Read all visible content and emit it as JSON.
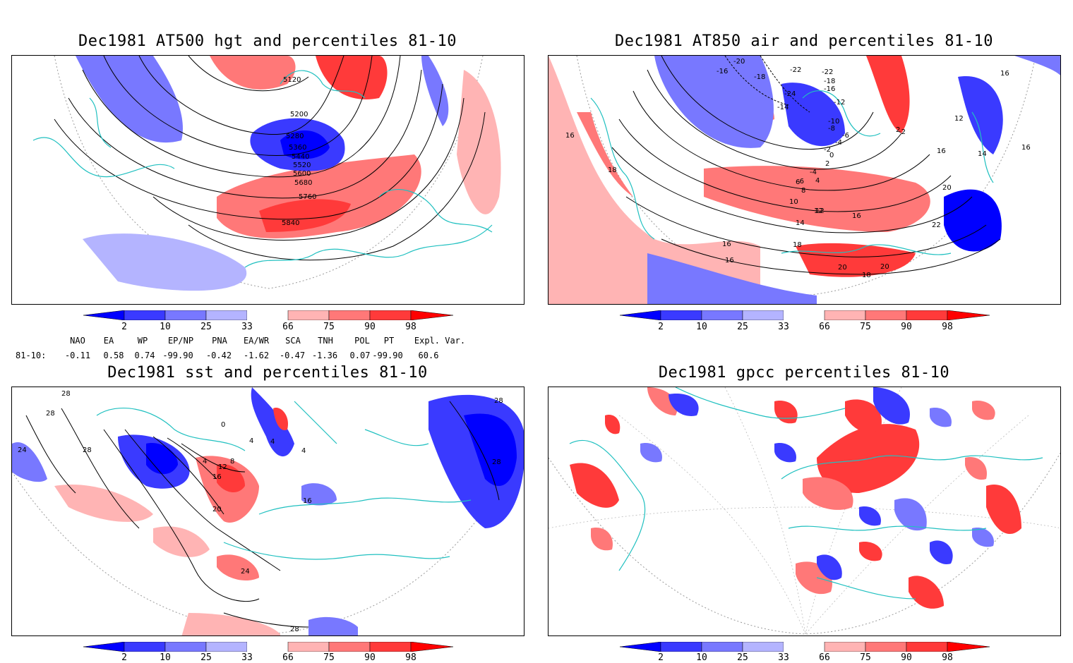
{
  "panels": [
    {
      "id": "hgt",
      "title": "Dec1981 AT500 hgt and percentiles 81-10",
      "contour_labels": [
        "5120",
        "5200",
        "5280",
        "5360",
        "5440",
        "5520",
        "5600",
        "5680",
        "5760",
        "5840"
      ]
    },
    {
      "id": "air",
      "title": "Dec1981 AT850 air and percentiles 81-10",
      "contour_labels": [
        "-20",
        "-16",
        "-18",
        "-22",
        "-22",
        "-18",
        "-16",
        "-24",
        "-14",
        "-12",
        "-10",
        "-8",
        "-6",
        "-4",
        "-2",
        "0",
        "2",
        "-2",
        "2",
        "-4",
        "4",
        "-6",
        "6",
        "8",
        "10",
        "12",
        "14",
        "16",
        "16",
        "16",
        "14",
        "18",
        "20",
        "12",
        "16",
        "22",
        "16",
        "18",
        "20",
        "20",
        "18",
        "16",
        "16",
        "12"
      ]
    },
    {
      "id": "sst",
      "title": "Dec1981 sst and percentiles 81-10",
      "contour_labels": [
        "28",
        "28",
        "24",
        "28",
        "28",
        "28",
        "0",
        "4",
        "4",
        "4",
        "4",
        "8",
        "12",
        "16",
        "16",
        "20",
        "24",
        "28"
      ]
    },
    {
      "id": "gpcc",
      "title": "Dec1981 gpcc percentiles 81-10",
      "contour_labels": []
    }
  ],
  "colorbar": {
    "ticks": [
      "2",
      "10",
      "25",
      "33",
      "66",
      "75",
      "90",
      "98"
    ],
    "colors": {
      "b1": "#0000ff",
      "b2": "#3a3aff",
      "b3": "#7878ff",
      "b4": "#b4b4ff",
      "r1": "#ffb4b4",
      "r2": "#ff7878",
      "r3": "#ff3a3a",
      "r4": "#ff0000"
    }
  },
  "indices": {
    "row_label": "81-10:",
    "names": [
      "NAO",
      "EA",
      "WP",
      "EP/NP",
      "PNA",
      "EA/WR",
      "SCA",
      "TNH",
      "POL",
      "PT",
      "Expl. Var."
    ],
    "values": [
      "-0.11",
      "0.58",
      "0.74",
      "-99.90",
      "-0.42",
      "-1.62",
      "-0.47",
      "-1.36",
      "0.07",
      "-99.90",
      "60.6"
    ]
  },
  "map_colors": {
    "coast": "#20c0c0",
    "contour": "#000000",
    "grid": "#999999"
  }
}
